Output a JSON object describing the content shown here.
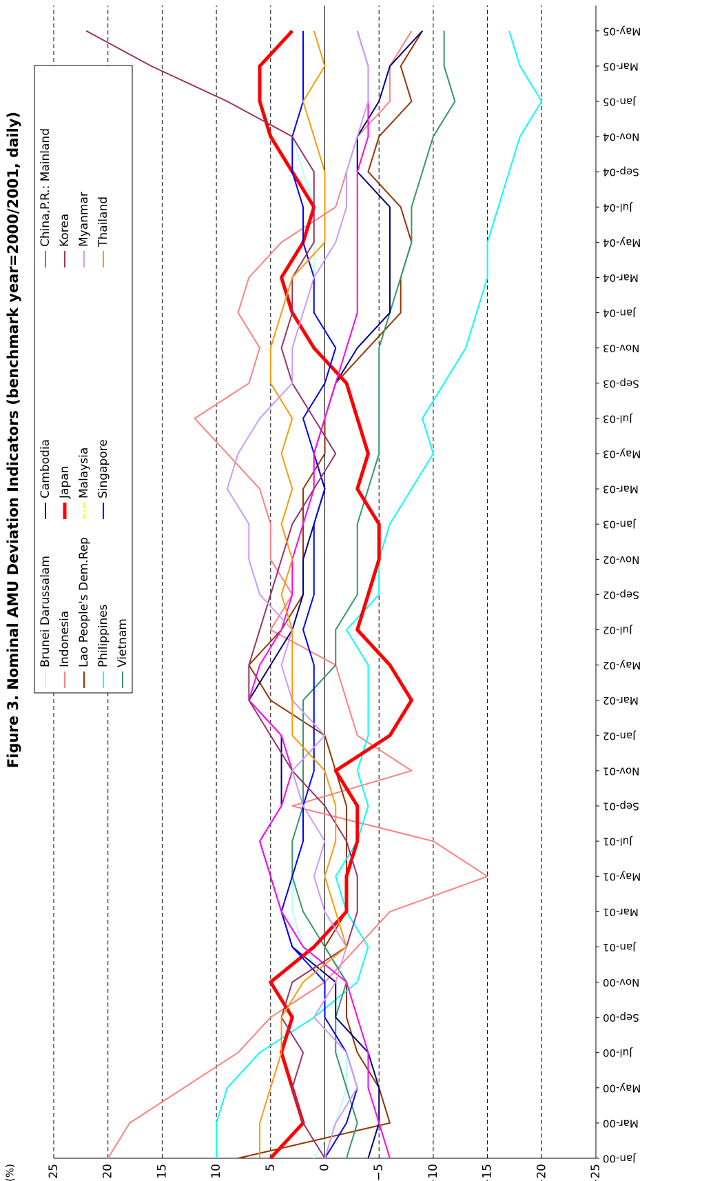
{
  "chart_data": {
    "type": "line",
    "title": "Figure 3. Nominal AMU Deviation Indicators (benchmark year=2000/2001, daily)",
    "y_label": "(%)",
    "categories": [
      "Jan-00",
      "Mar-00",
      "May-00",
      "Jul-00",
      "Sep-00",
      "Nov-00",
      "Jan-01",
      "Mar-01",
      "May-01",
      "Jul-01",
      "Sep-01",
      "Nov-01",
      "Jan-02",
      "Mar-02",
      "May-02",
      "Jul-02",
      "Sep-02",
      "Nov-02",
      "Jan-03",
      "Mar-03",
      "May-03",
      "Jul-03",
      "Sep-03",
      "Nov-03",
      "Jan-04",
      "Mar-04",
      "May-04",
      "Jul-04",
      "Sep-04",
      "Nov-04",
      "Jan-05",
      "Mar-05",
      "May-05"
    ],
    "ylim": [
      -25,
      25
    ],
    "yticks": [
      25,
      20,
      15,
      10,
      5,
      0,
      {
        "value": -5,
        "label": "−5"
      },
      {
        "value": -10,
        "label": "−10"
      },
      {
        "value": -15,
        "label": "−15"
      },
      {
        "value": -20,
        "label": "−20"
      },
      {
        "value": -25,
        "label": "−25"
      }
    ],
    "grid": true,
    "series": [
      {
        "name": "Brunei Darussalam",
        "color": "#b8ffff",
        "values": [
          1,
          -1,
          -2,
          -2,
          0,
          0,
          2,
          3,
          3,
          2,
          2,
          1,
          1,
          1,
          1,
          2,
          1,
          1,
          1,
          0,
          1,
          2,
          0,
          -1,
          1,
          1,
          1,
          1,
          2,
          3,
          2,
          2,
          2
        ]
      },
      {
        "name": "Indonesia",
        "color": "#ff8080",
        "values": [
          20,
          18,
          13,
          8,
          5,
          0,
          -3,
          -6,
          -15,
          -10,
          3,
          -8,
          -3,
          -2,
          -1,
          5,
          3,
          5,
          5,
          6,
          9,
          12,
          7,
          6,
          8,
          7,
          4,
          -1,
          -2,
          -3,
          -6,
          -6,
          -8
        ]
      },
      {
        "name": "Lao People's Dem.Rep",
        "color": "#993300",
        "values": [
          8,
          -6,
          -5,
          -3,
          -2,
          -2,
          0,
          -2,
          -2,
          -2,
          -2,
          -1,
          0,
          5,
          7,
          4,
          2,
          2,
          2,
          2,
          0,
          0,
          -1,
          -4,
          -7,
          -7,
          -8,
          -7,
          -4,
          -5,
          -8,
          -7,
          -9
        ]
      },
      {
        "name": "Philippines",
        "color": "#00ffff",
        "values": [
          10,
          10,
          9,
          6,
          1,
          -3,
          -4,
          -2,
          -1,
          -3,
          -4,
          -3,
          -4,
          -4,
          -4,
          -2,
          -5,
          -5,
          -6,
          -8,
          -10,
          -9,
          -11,
          -13,
          -14,
          -15,
          -15,
          -16,
          -17,
          -18,
          -20,
          -18,
          -17
        ]
      },
      {
        "name": "Vietnam",
        "color": "#339966",
        "values": [
          -2,
          -3,
          -2,
          -1,
          -1,
          -2,
          0,
          2,
          3,
          3,
          2,
          2,
          2,
          2,
          -1,
          -1,
          -3,
          -3,
          -3,
          -4,
          -5,
          -5,
          -5,
          -5,
          -6,
          -7,
          -8,
          -8,
          -9,
          -10,
          -12,
          -11,
          -11
        ]
      },
      {
        "name": "Cambodia",
        "color": "#000080",
        "values": [
          -4,
          -5,
          -5,
          -4,
          -1,
          -1,
          3,
          4,
          5,
          6,
          4,
          4,
          4,
          7,
          5,
          3,
          2,
          2,
          1,
          0,
          1,
          0,
          -1,
          -3,
          -6,
          -6,
          -6,
          -6,
          -3,
          -3,
          -5,
          -6,
          -9
        ]
      },
      {
        "name": "Japan",
        "color": "#ff0000",
        "values": [
          5,
          2,
          3,
          4,
          3,
          5,
          1,
          -2,
          -2,
          -3,
          -3,
          -1,
          -6,
          -8,
          -6,
          -3,
          -4,
          -5,
          -5,
          -3,
          -4,
          -3,
          -2,
          1,
          3,
          4,
          2,
          1,
          3,
          5,
          6,
          6,
          3
        ]
      },
      {
        "name": "Malaysia",
        "color": "#ffff00",
        "values": [
          -6,
          -5,
          -4,
          -4,
          -3,
          -2,
          2,
          4,
          5,
          6,
          4,
          3,
          4,
          7,
          6,
          4,
          3,
          3,
          2,
          1,
          1,
          0,
          -1,
          -2,
          -3,
          -3,
          -3,
          -3,
          -3,
          -4,
          -4,
          -4,
          -3
        ]
      },
      {
        "name": "Singapore",
        "color": "#0000ff",
        "values": [
          0,
          -2,
          -3,
          -2,
          0,
          0,
          3,
          4,
          3,
          2,
          2,
          1,
          1,
          1,
          1,
          2,
          1,
          1,
          1,
          0,
          1,
          2,
          0,
          -1,
          1,
          1,
          2,
          2,
          3,
          3,
          2,
          2,
          2
        ]
      },
      {
        "name": "China,P.R.: Mainland",
        "color": "#ff00ff",
        "values": [
          -6,
          -5,
          -4,
          -4,
          -3,
          -2,
          2,
          4,
          5,
          6,
          4,
          3,
          4,
          7,
          6,
          4,
          3,
          3,
          2,
          1,
          1,
          0,
          -1,
          -2,
          -3,
          -3,
          -3,
          -3,
          -3,
          -4,
          -4,
          -4,
          -3
        ]
      },
      {
        "name": "Korea",
        "color": "#993366",
        "values": [
          0,
          2,
          3,
          2,
          4,
          3,
          -2,
          -3,
          -3,
          -2,
          0,
          3,
          5,
          7,
          7,
          6,
          5,
          4,
          3,
          1,
          -1,
          1,
          3,
          4,
          3,
          3,
          1,
          1,
          1,
          3,
          9,
          16,
          22
        ]
      },
      {
        "name": "Myanmar",
        "color": "#cc99ff",
        "values": [
          0,
          -1,
          -3,
          -2,
          1,
          -1,
          -2,
          0,
          1,
          0,
          2,
          3,
          0,
          3,
          4,
          3,
          6,
          7,
          7,
          9,
          8,
          6,
          3,
          3,
          2,
          1,
          -1,
          -2,
          -2,
          -3,
          -4,
          -4,
          -3
        ]
      },
      {
        "name": "Thailand",
        "color": "#ff9900",
        "values": [
          6,
          6,
          5,
          4,
          4,
          2,
          -2,
          -1,
          0,
          -1,
          -1,
          0,
          3,
          3,
          3,
          3,
          4,
          3,
          4,
          3,
          4,
          3,
          5,
          5,
          4,
          3,
          0,
          0,
          0,
          1,
          2,
          0,
          1
        ]
      }
    ]
  }
}
